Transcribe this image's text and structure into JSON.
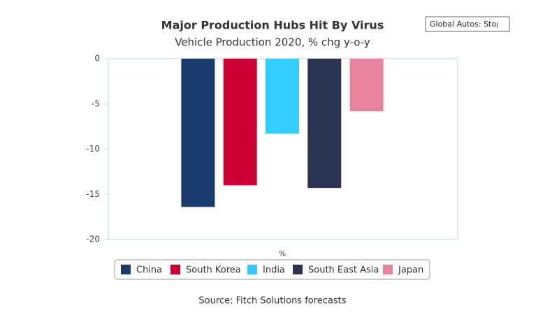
{
  "chart_data": {
    "type": "bar",
    "title": "Major Production Hubs Hit By Virus",
    "subtitle": "Vehicle Production 2020, % chg y-o-y",
    "y_label": "%",
    "source": "Source: Fitch Solutions forecasts",
    "tab_label": "Global Autos: Stopp",
    "categories": [
      null
    ],
    "series": [
      {
        "name": "China",
        "color": "#1a3a6e",
        "values": [
          -16.4
        ]
      },
      {
        "name": "South Korea",
        "color": "#cc0033",
        "values": [
          -14.0
        ]
      },
      {
        "name": "India",
        "color": "#33ccff",
        "values": [
          -8.3
        ]
      },
      {
        "name": "South East Asia",
        "color": "#2a3350",
        "values": [
          -14.3
        ]
      },
      {
        "name": "Japan",
        "color": "#e8839e",
        "values": [
          -5.8
        ]
      }
    ],
    "ylim": [
      -20,
      0
    ],
    "yticks": [
      0,
      -5,
      -10,
      -15,
      -20
    ],
    "grid": false
  }
}
